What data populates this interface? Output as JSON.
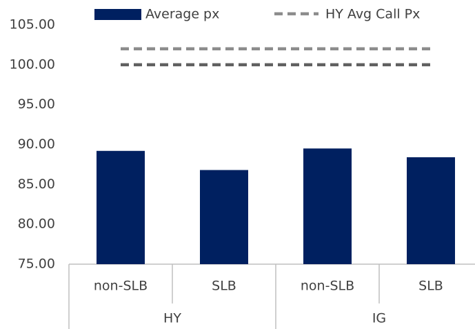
{
  "chart_data": {
    "type": "bar",
    "categories": [
      "non-SLB",
      "SLB",
      "non-SLB",
      "SLB"
    ],
    "groups": [
      "HY",
      "IG"
    ],
    "series": [
      {
        "name": "Average px",
        "type": "bar",
        "color": "#002060",
        "values": [
          89.2,
          86.8,
          89.5,
          88.4
        ]
      },
      {
        "name": "HY Avg Call Px",
        "type": "line",
        "color": "#8c8c8c",
        "values": [
          102,
          102,
          102,
          102
        ]
      },
      {
        "type": "line",
        "color": "#606060",
        "values": [
          100,
          100,
          100,
          100
        ]
      }
    ],
    "ylim": [
      75,
      105
    ],
    "yticks": [
      {
        "value": 75,
        "label": "75.00"
      },
      {
        "value": 80,
        "label": "80.00"
      },
      {
        "value": 85,
        "label": "85.00"
      },
      {
        "value": 90,
        "label": "90.00"
      },
      {
        "value": 95,
        "label": "95.00"
      },
      {
        "value": 100,
        "label": "100.00"
      },
      {
        "value": 105,
        "label": "105.00"
      }
    ],
    "grid": false
  }
}
